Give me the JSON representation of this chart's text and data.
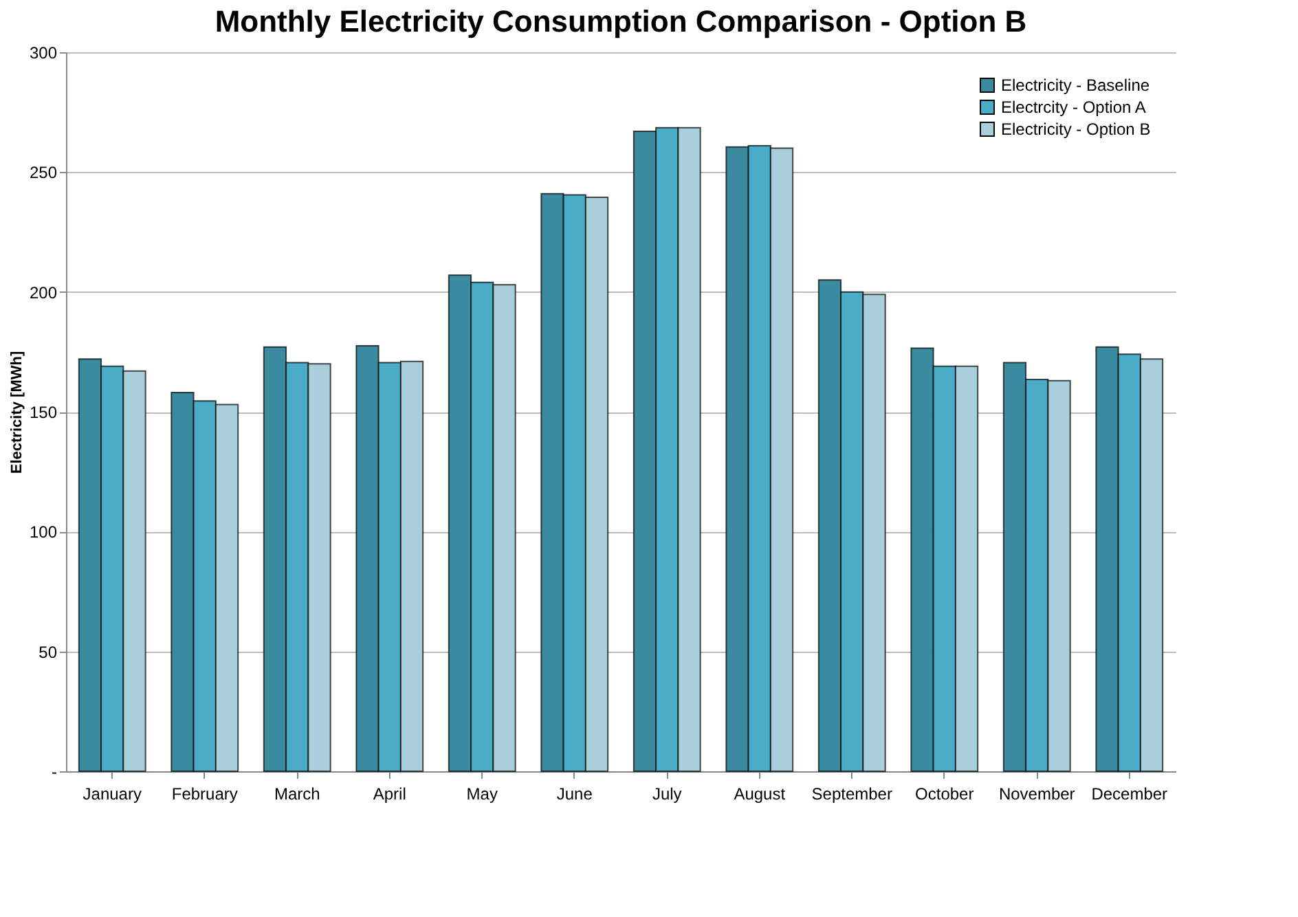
{
  "chart_data": {
    "type": "bar",
    "title": "Monthly Electricity Consumption Comparison - Option B",
    "ylabel": "Electricity [MWh]",
    "categories": [
      "January",
      "February",
      "March",
      "April",
      "May",
      "June",
      "July",
      "August",
      "September",
      "October",
      "November",
      "December"
    ],
    "series": [
      {
        "name": "Electricity - Baseline",
        "color": "#3a8aa0",
        "values": [
          172,
          158,
          177,
          177.5,
          207,
          241,
          267,
          260.5,
          205,
          176.5,
          170.5,
          177
        ]
      },
      {
        "name": "Electrcity - Option A",
        "color": "#4aacc6",
        "values": [
          169,
          154.5,
          170.5,
          170.5,
          204,
          240.5,
          268.5,
          261,
          200,
          169,
          163.5,
          174
        ]
      },
      {
        "name": "Electricity - Option B",
        "color": "#a9cfdd",
        "values": [
          167,
          153,
          170,
          171,
          203,
          239.5,
          268.5,
          260,
          199,
          169,
          163,
          172
        ]
      }
    ],
    "ylim": [
      0,
      300
    ],
    "yticks": [
      {
        "value": 0,
        "label": "-"
      },
      50,
      100,
      150,
      200,
      250,
      300
    ],
    "grid": "y",
    "legend": "top right"
  }
}
